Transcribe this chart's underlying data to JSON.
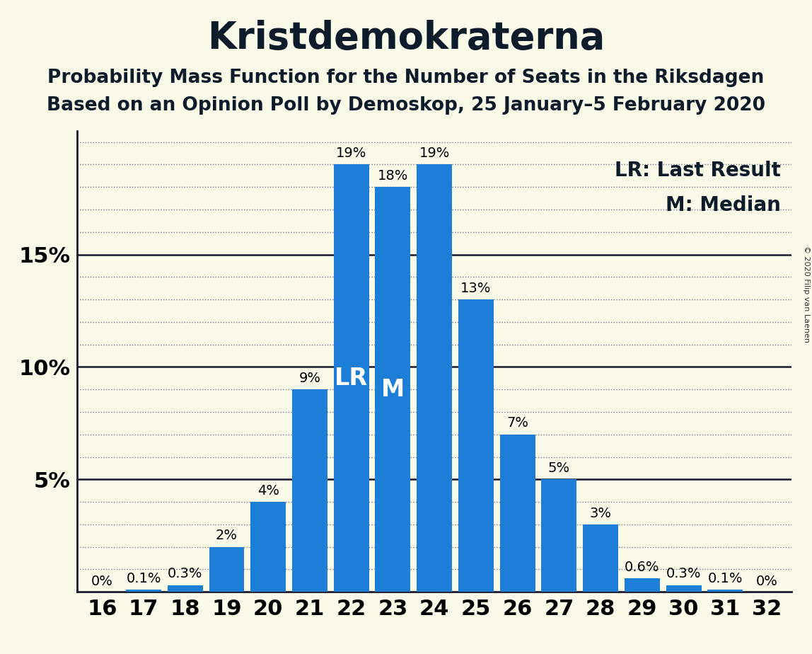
{
  "title": "Kristdemokraterna",
  "subtitle1": "Probability Mass Function for the Number of Seats in the Riksdagen",
  "subtitle2": "Based on an Opinion Poll by Demoskop, 25 January–5 February 2020",
  "copyright": "© 2020 Filip van Laenen",
  "legend_lr": "LR: Last Result",
  "legend_m": "M: Median",
  "categories": [
    16,
    17,
    18,
    19,
    20,
    21,
    22,
    23,
    24,
    25,
    26,
    27,
    28,
    29,
    30,
    31,
    32
  ],
  "values": [
    0.0,
    0.1,
    0.3,
    2.0,
    4.0,
    9.0,
    19.0,
    18.0,
    19.0,
    13.0,
    7.0,
    5.0,
    3.0,
    0.6,
    0.3,
    0.1,
    0.0
  ],
  "labels": [
    "0%",
    "0.1%",
    "0.3%",
    "2%",
    "4%",
    "9%",
    "19%",
    "18%",
    "19%",
    "13%",
    "7%",
    "5%",
    "3%",
    "0.6%",
    "0.3%",
    "0.1%",
    "0%"
  ],
  "bar_color": "#1C7ED6",
  "background_color": "#FAFAE8",
  "lr_seat": 22,
  "median_seat": 23,
  "lr_label": "LR",
  "median_label": "M",
  "title_fontsize": 38,
  "subtitle_fontsize": 19,
  "label_fontsize": 14,
  "tick_fontsize": 22,
  "legend_fontsize": 20,
  "ylim": [
    0,
    20.5
  ],
  "major_yticks": [
    5,
    10,
    15
  ],
  "minor_ytick_step": 1
}
